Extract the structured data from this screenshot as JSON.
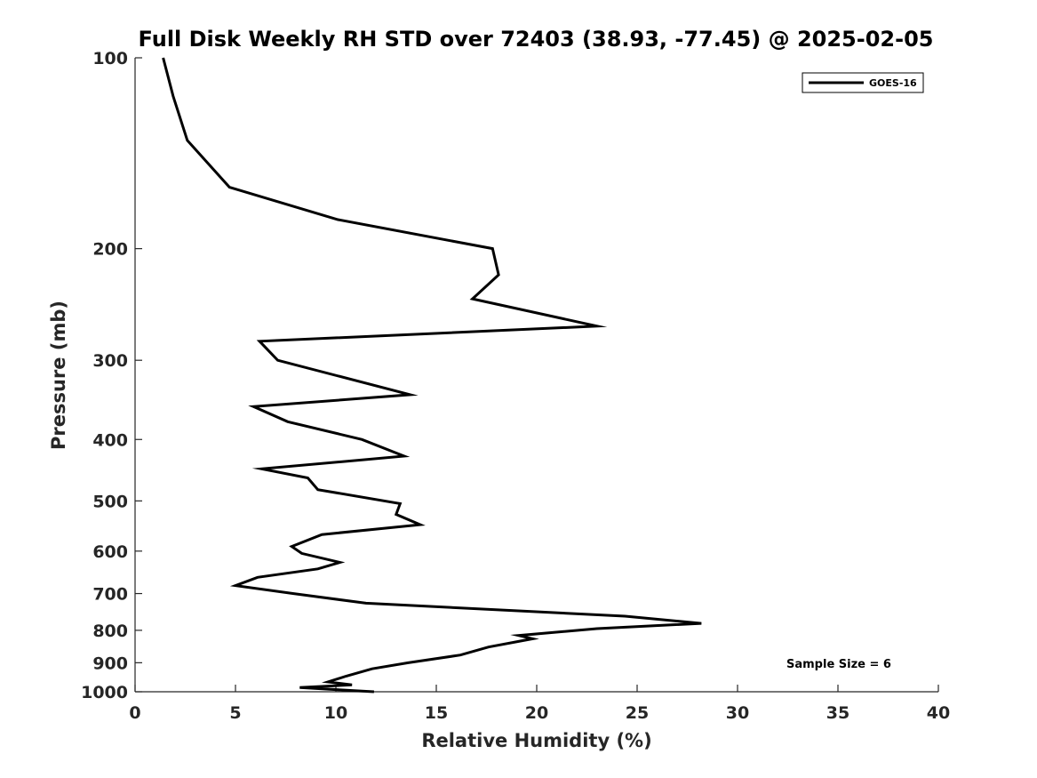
{
  "chart_data": {
    "type": "line",
    "title": "Full Disk Weekly RH STD over 72403 (38.93, -77.45) @ 2025-02-05",
    "xlabel": "Relative Humidity (%)",
    "ylabel": "Pressure (mb)",
    "xlim": [
      0,
      40
    ],
    "ylim": [
      100,
      1000
    ],
    "yscale": "log",
    "y_reversed": true,
    "x_ticks": [
      0,
      5,
      10,
      15,
      20,
      25,
      30,
      35,
      40
    ],
    "y_ticks": [
      100,
      200,
      300,
      400,
      500,
      600,
      700,
      800,
      900,
      1000
    ],
    "grid": false,
    "legend_placement": "top-right",
    "annotation": "Sample Size = 6",
    "series": [
      {
        "name": "GOES-16",
        "color": "#000000",
        "points": [
          [
            1.4,
            100
          ],
          [
            1.9,
            115
          ],
          [
            2.6,
            135
          ],
          [
            4.7,
            160
          ],
          [
            10.1,
            180
          ],
          [
            17.8,
            200
          ],
          [
            18.1,
            220
          ],
          [
            16.8,
            240
          ],
          [
            23.0,
            265
          ],
          [
            6.2,
            280
          ],
          [
            7.1,
            300
          ],
          [
            13.7,
            340
          ],
          [
            5.9,
            355
          ],
          [
            7.6,
            375
          ],
          [
            11.3,
            400
          ],
          [
            13.4,
            425
          ],
          [
            6.3,
            445
          ],
          [
            8.6,
            460
          ],
          [
            9.1,
            480
          ],
          [
            13.2,
            505
          ],
          [
            13.0,
            525
          ],
          [
            14.2,
            545
          ],
          [
            9.3,
            565
          ],
          [
            7.8,
            590
          ],
          [
            8.3,
            605
          ],
          [
            10.2,
            625
          ],
          [
            9.1,
            640
          ],
          [
            6.1,
            660
          ],
          [
            5.0,
            680
          ],
          [
            7.9,
            700
          ],
          [
            11.5,
            725
          ],
          [
            24.4,
            760
          ],
          [
            28.2,
            780
          ],
          [
            23.0,
            795
          ],
          [
            19.1,
            815
          ],
          [
            19.8,
            825
          ],
          [
            17.6,
            850
          ],
          [
            16.2,
            875
          ],
          [
            13.6,
            900
          ],
          [
            11.8,
            920
          ],
          [
            10.5,
            945
          ],
          [
            9.6,
            965
          ],
          [
            10.8,
            975
          ],
          [
            8.2,
            985
          ],
          [
            11.9,
            1000
          ]
        ]
      }
    ]
  }
}
